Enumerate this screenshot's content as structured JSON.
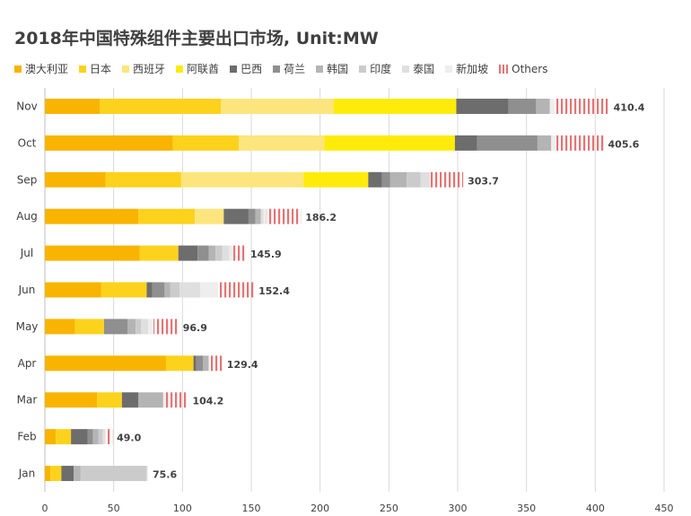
{
  "chart_data": {
    "type": "bar",
    "orientation": "horizontal",
    "stacked": true,
    "title": "2018年中国特殊组件主要出口市场, Unit:MW",
    "xlim": [
      0,
      450
    ],
    "x_ticks": [
      0,
      50,
      100,
      150,
      200,
      250,
      300,
      350,
      400,
      450
    ],
    "grid": true,
    "legend_position": "top",
    "categories": [
      "Nov",
      "Oct",
      "Sep",
      "Aug",
      "Jul",
      "Jun",
      "May",
      "Apr",
      "Mar",
      "Feb",
      "Jan"
    ],
    "totals": [
      "410.4",
      "405.6",
      "303.7",
      "186.2",
      "145.9",
      "152.4",
      "96.9",
      "129.4",
      "104.2",
      "49.0",
      "75.6"
    ],
    "series": [
      {
        "name": "澳大利亚",
        "color": "#F8B400",
        "values": [
          40,
          93,
          44,
          68,
          69,
          41,
          22,
          88,
          38,
          8,
          4
        ]
      },
      {
        "name": "日本",
        "color": "#FDD21C",
        "values": [
          88,
          48,
          55,
          41,
          28,
          33,
          21,
          20,
          18,
          11,
          8
        ]
      },
      {
        "name": "西班牙",
        "color": "#FCE57C",
        "values": [
          82,
          62,
          89,
          21,
          0,
          0,
          0,
          0,
          0,
          0,
          0
        ]
      },
      {
        "name": "阿联酋",
        "color": "#FFEB0A",
        "values": [
          89,
          95,
          47,
          0,
          0,
          0,
          0,
          0,
          0,
          0,
          0
        ]
      },
      {
        "name": "巴西",
        "color": "#6D6D6D",
        "values": [
          38,
          16,
          10,
          18,
          14,
          4,
          0,
          2,
          12,
          12,
          9
        ]
      },
      {
        "name": "荷兰",
        "color": "#8F8F8F",
        "values": [
          20,
          44,
          6,
          5,
          8,
          9,
          17,
          5,
          0,
          4,
          0
        ]
      },
      {
        "name": "韩国",
        "color": "#B4B4B4",
        "values": [
          10,
          10,
          12,
          4,
          5,
          4,
          6,
          4,
          18,
          4,
          5
        ]
      },
      {
        "name": "印度",
        "color": "#CBCBCB",
        "values": [
          0,
          0,
          10,
          0,
          5,
          7,
          4,
          0,
          0,
          3,
          48
        ]
      },
      {
        "name": "泰国",
        "color": "#DFDFDF",
        "values": [
          0,
          0,
          7,
          2,
          5,
          15,
          5,
          0,
          0,
          2,
          0
        ]
      },
      {
        "name": "新加坡",
        "color": "#EEEEEE",
        "values": [
          3,
          3,
          0,
          2,
          3,
          13,
          4,
          1,
          2,
          0,
          1
        ]
      },
      {
        "name": "Others",
        "color": "#E57373",
        "hatched": true,
        "values": [
          40,
          35,
          24,
          25,
          9,
          26,
          18,
          9,
          16,
          5,
          0
        ]
      }
    ]
  }
}
